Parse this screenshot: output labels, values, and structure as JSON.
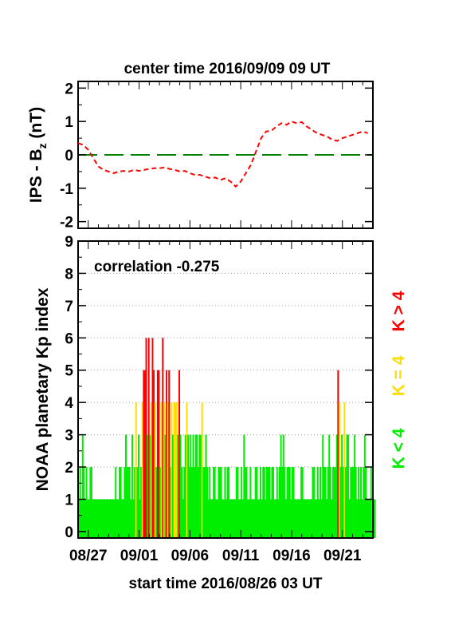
{
  "chart_data": [
    {
      "type": "line",
      "title": "center time 2016/09/09 09 UT",
      "ylabel_main": "IPS - B",
      "ylabel_sub": "z",
      "ylabel_unit": " (nT)",
      "ylim": [
        -2.2,
        2.2
      ],
      "yticks": [
        {
          "label": "2",
          "value": 2
        },
        {
          "label": "1",
          "value": 1
        },
        {
          "label": "0",
          "value": 0
        },
        {
          "label": "-1",
          "value": -1
        },
        {
          "label": "-2",
          "value": -2
        }
      ],
      "xlim": [
        0,
        29
      ],
      "reference_line": {
        "y": 0,
        "color": "#008000",
        "style": "long-dash"
      },
      "series": [
        {
          "color": "#ff0000",
          "style": "dashed",
          "x": [
            0,
            0.5,
            1,
            1.5,
            2,
            2.5,
            3,
            3.5,
            4,
            4.5,
            5,
            5.5,
            6,
            6.5,
            7,
            7.5,
            8,
            8.5,
            9,
            9.5,
            10,
            10.5,
            11,
            11.5,
            12,
            12.5,
            13,
            13.5,
            14,
            14.5,
            15,
            15.5,
            16,
            16.5,
            17,
            17.5,
            18,
            18.5,
            19,
            19.5,
            20,
            20.5,
            21,
            21.5,
            22,
            22.5,
            23,
            23.5,
            24,
            24.5,
            25,
            25.5,
            26,
            26.5,
            27,
            27.5,
            28,
            28.5
          ],
          "values": [
            0.35,
            0.3,
            0.15,
            -0.1,
            -0.35,
            -0.45,
            -0.5,
            -0.55,
            -0.5,
            -0.48,
            -0.5,
            -0.45,
            -0.48,
            -0.45,
            -0.42,
            -0.4,
            -0.4,
            -0.38,
            -0.42,
            -0.45,
            -0.5,
            -0.48,
            -0.55,
            -0.6,
            -0.6,
            -0.65,
            -0.7,
            -0.68,
            -0.75,
            -0.7,
            -0.8,
            -0.95,
            -0.8,
            -0.55,
            -0.3,
            0.1,
            0.5,
            0.7,
            0.72,
            0.85,
            0.95,
            0.9,
            1.0,
            0.95,
            0.98,
            0.85,
            0.75,
            0.65,
            0.6,
            0.55,
            0.45,
            0.42,
            0.5,
            0.55,
            0.6,
            0.65,
            0.7,
            0.65
          ]
        }
      ]
    },
    {
      "type": "bar",
      "annotation": "correlation -0.275",
      "ylabel": "NOAA planetary Kp index",
      "xlabel": "start time 2016/08/26 03 UT",
      "ylim": [
        -0.2,
        9
      ],
      "yticks": [
        {
          "label": "9",
          "value": 9
        },
        {
          "label": "8",
          "value": 8
        },
        {
          "label": "7",
          "value": 7
        },
        {
          "label": "6",
          "value": 6
        },
        {
          "label": "5",
          "value": 5
        },
        {
          "label": "4",
          "value": 4
        },
        {
          "label": "3",
          "value": 3
        },
        {
          "label": "2",
          "value": 2
        },
        {
          "label": "1",
          "value": 1
        },
        {
          "label": "0",
          "value": 0
        }
      ],
      "grid": true,
      "xlim": [
        0,
        29
      ],
      "xticks": [
        {
          "label": "08/27",
          "day": 1
        },
        {
          "label": "09/01",
          "day": 6
        },
        {
          "label": "09/06",
          "day": 11
        },
        {
          "label": "09/11",
          "day": 16
        },
        {
          "label": "09/16",
          "day": 21
        },
        {
          "label": "09/21",
          "day": 26
        }
      ],
      "legend": [
        {
          "label": "K > 4",
          "color": "#ff0000"
        },
        {
          "label": "K = 4",
          "color": "#ffdd00"
        },
        {
          "label": "K < 4",
          "color": "#00ee00"
        }
      ],
      "colors": {
        "low": "#00ee00",
        "mid": "#ffdd00",
        "high": "#ff0000"
      },
      "kp": [
        1,
        2,
        1,
        3,
        2,
        1,
        2,
        1,
        1,
        2,
        2,
        1,
        1,
        1,
        1,
        1,
        1,
        1,
        1,
        1,
        1,
        1,
        1,
        1,
        1,
        1,
        1,
        1,
        1,
        2,
        1,
        1,
        2,
        2,
        1,
        1,
        2,
        3,
        2,
        2,
        2,
        1,
        3,
        1,
        2,
        4,
        2,
        3,
        1,
        2,
        4,
        5,
        5,
        6,
        3,
        6,
        3,
        4,
        6,
        5,
        4,
        2,
        5,
        5,
        2,
        4,
        6,
        4,
        3,
        5,
        4,
        5,
        2,
        4,
        3,
        4,
        4,
        4,
        3,
        5,
        3,
        2,
        1,
        2,
        3,
        4,
        3,
        2,
        3,
        2,
        3,
        2,
        3,
        3,
        2,
        3,
        3,
        4,
        2,
        2,
        3,
        2,
        1,
        2,
        1,
        1,
        2,
        2,
        1,
        1,
        2,
        2,
        2,
        1,
        1,
        2,
        1,
        2,
        2,
        1,
        1,
        1,
        1,
        1,
        2,
        2,
        1,
        1,
        2,
        1,
        3,
        2,
        2,
        1,
        1,
        2,
        1,
        1,
        1,
        2,
        2,
        1,
        1,
        2,
        1,
        2,
        2,
        1,
        2,
        2,
        2,
        1,
        2,
        2,
        1,
        1,
        2,
        1,
        2,
        3,
        2,
        3,
        2,
        1,
        2,
        2,
        2,
        1,
        2,
        2,
        1,
        1,
        1,
        1,
        1,
        2,
        2,
        1,
        1,
        1,
        1,
        1,
        1,
        1,
        2,
        2,
        1,
        1,
        2,
        1,
        2,
        1,
        3,
        2,
        2,
        1,
        2,
        3,
        2,
        1,
        2,
        2,
        2,
        3,
        5,
        4,
        2,
        3,
        2,
        4,
        2,
        3,
        3,
        1,
        2,
        2,
        2,
        3,
        2,
        1,
        2,
        1,
        2,
        1,
        2,
        3,
        2,
        1,
        1,
        1,
        2,
        0,
        1,
        1
      ]
    }
  ]
}
